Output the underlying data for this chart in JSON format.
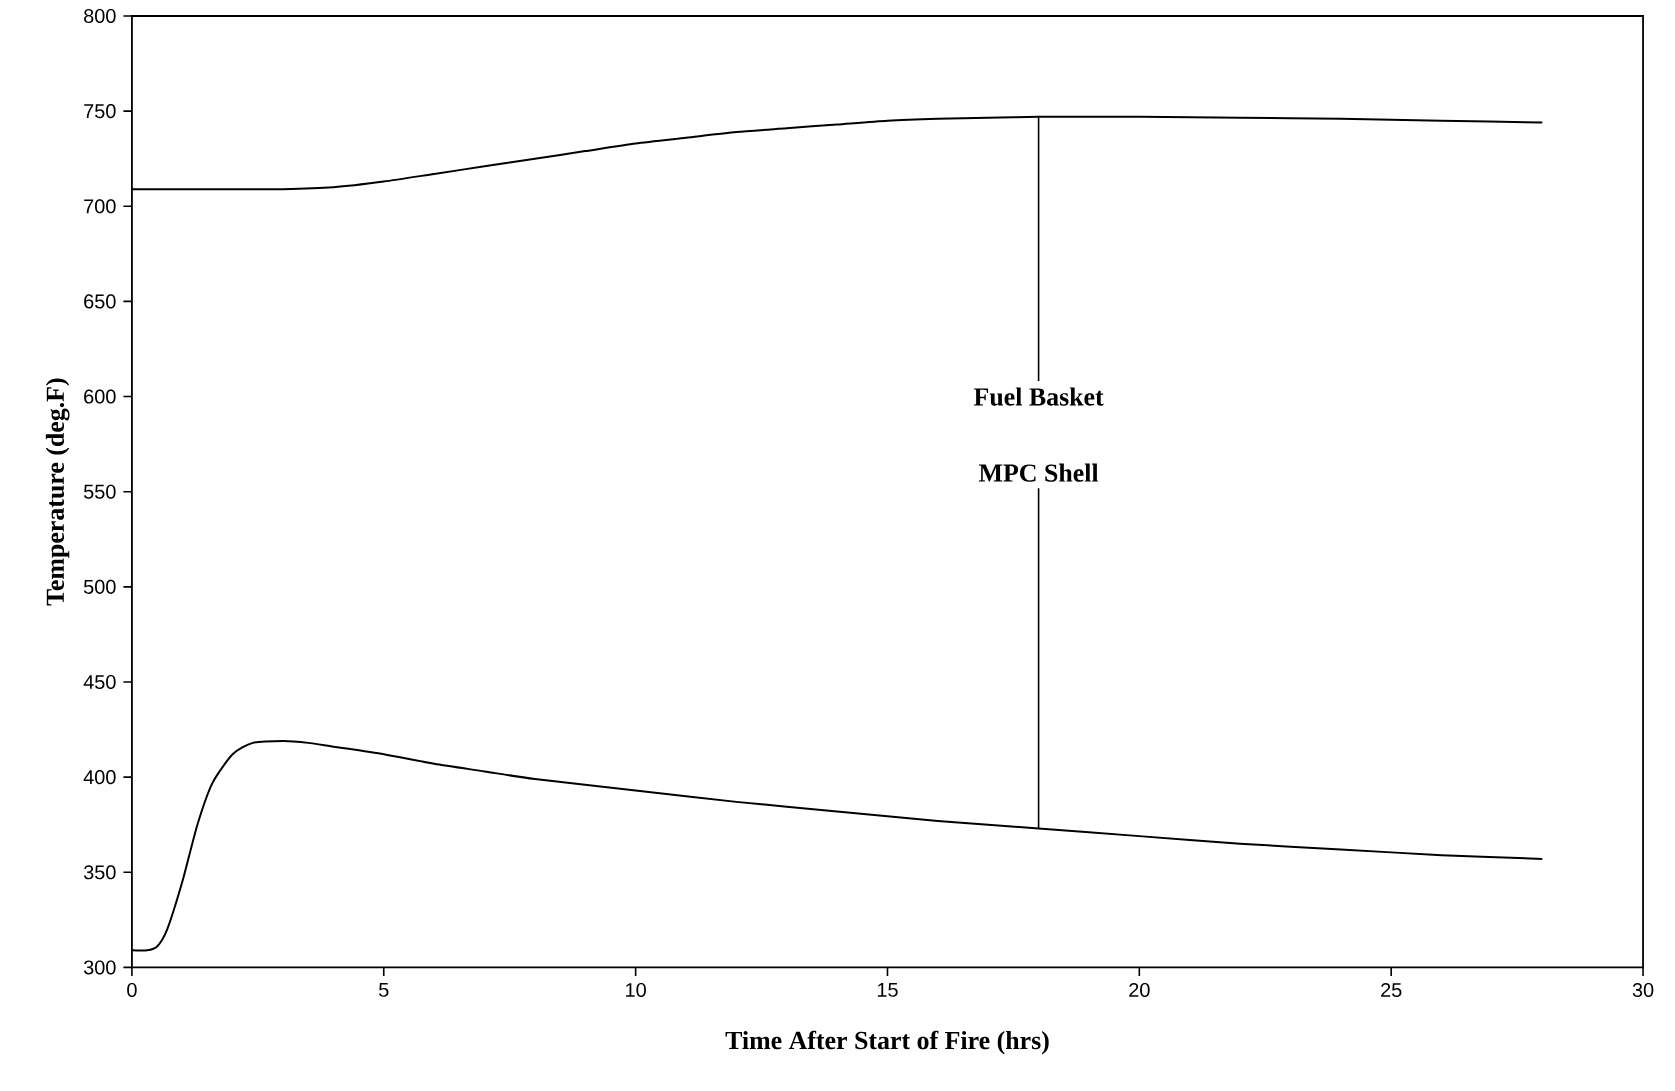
{
  "chart_data": {
    "type": "line",
    "xlabel": "Time After Start of Fire (hrs)",
    "ylabel": "Temperature (deg.F)",
    "xlim": [
      0,
      30
    ],
    "ylim": [
      300,
      800
    ],
    "xticks": [
      0,
      5,
      10,
      15,
      20,
      25,
      30
    ],
    "yticks": [
      300,
      350,
      400,
      450,
      500,
      550,
      600,
      650,
      700,
      750,
      800
    ],
    "grid": false,
    "marker": "none",
    "line_style": "solid",
    "series": [
      {
        "color": "#000000",
        "x": [
          0,
          1,
          2,
          3,
          4,
          5,
          6,
          7,
          8,
          9,
          10,
          11,
          12,
          13,
          14,
          15,
          16,
          17,
          18,
          19,
          20,
          22,
          24,
          26,
          28
        ],
        "values": [
          709,
          709,
          709,
          709,
          710,
          713,
          717,
          721,
          725,
          729,
          733,
          736,
          739,
          741,
          743,
          745,
          746,
          746.5,
          747,
          747,
          747,
          746.5,
          746,
          745,
          744
        ]
      },
      {
        "color": "#000000",
        "x": [
          0,
          0.3,
          0.5,
          0.7,
          1,
          1.3,
          1.6,
          2,
          2.4,
          3,
          3.5,
          4,
          5,
          6,
          7,
          8,
          10,
          12,
          14,
          16,
          18,
          20,
          22,
          24,
          26,
          28
        ],
        "values": [
          309,
          309,
          311,
          320,
          345,
          375,
          397,
          412,
          418,
          419,
          418,
          416,
          412,
          407,
          403,
          399,
          393,
          387,
          382,
          377,
          373,
          369,
          365,
          362,
          359,
          357
        ]
      }
    ],
    "annotations": [
      {
        "text": "Fuel Basket",
        "x": 18,
        "y": 747
      },
      {
        "text": "MPC Shell",
        "x": 18,
        "y": 373
      }
    ]
  }
}
